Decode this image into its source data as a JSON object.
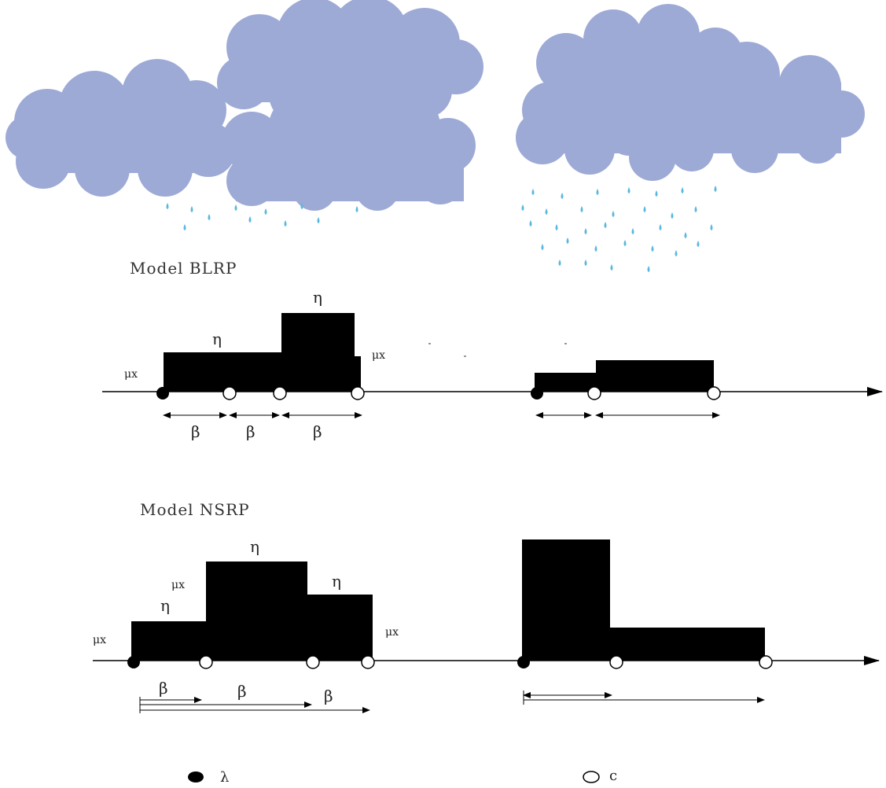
{
  "colors": {
    "cloud": "#9daad6",
    "rain": "#5ab8e0",
    "block": "#000000",
    "axis": "#000000",
    "page": "#ffffff"
  },
  "models": {
    "blrp": {
      "title": "Model BLRP",
      "labels": {
        "eta_1": "η",
        "eta_2": "η",
        "mu_left": "μx",
        "mu_right": "μx"
      },
      "durations": [
        "β",
        "β",
        "β"
      ]
    },
    "nsrp": {
      "title": "Model NSRP",
      "labels": {
        "eta_1": "η",
        "eta_2": "η",
        "eta_3": "η",
        "mu_1": "μx",
        "mu_2": "μx",
        "mu_3": "μx"
      },
      "durations": [
        "β",
        "β",
        "β"
      ]
    }
  },
  "legend": {
    "storm_origin": {
      "icon": "filled-circle-icon",
      "label": "λ"
    },
    "cell_origin": {
      "icon": "open-circle-icon",
      "label": "c"
    }
  }
}
